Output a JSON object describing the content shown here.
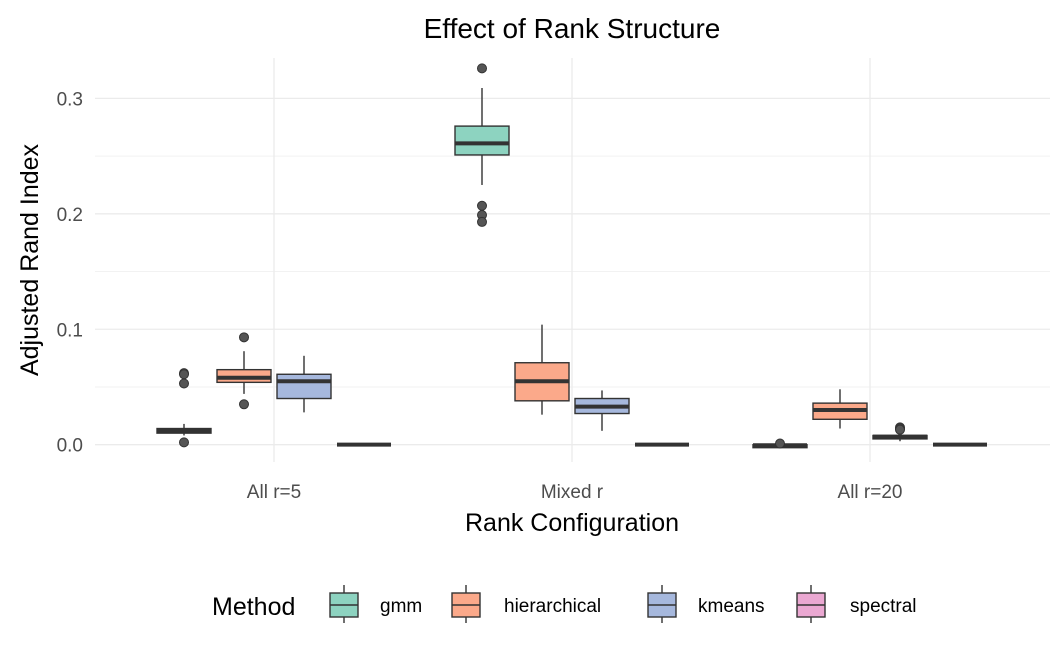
{
  "chart_data": {
    "type": "box",
    "title": "Effect of Rank Structure",
    "xlabel": "Rank Configuration",
    "ylabel": "Adjusted Rand Index",
    "ylim": [
      -0.015,
      0.335
    ],
    "yticks": [
      0.0,
      0.1,
      0.2,
      0.3
    ],
    "ytick_labels": [
      "0.0",
      "0.1",
      "0.2",
      "0.3"
    ],
    "categories": [
      "All r=5",
      "Mixed r",
      "All r=20"
    ],
    "legend": {
      "title": "Method",
      "position": "bottom"
    },
    "grid": true,
    "series": [
      {
        "name": "gmm",
        "color": "#8DD3C0",
        "boxes": [
          {
            "min": 0.008,
            "q1": 0.01,
            "median": 0.012,
            "q3": 0.014,
            "max": 0.018,
            "outliers": [
              0.062,
              0.061,
              0.053,
              0.002
            ]
          },
          {
            "min": 0.225,
            "q1": 0.251,
            "median": 0.261,
            "q3": 0.276,
            "max": 0.309,
            "outliers": [
              0.326,
              0.207,
              0.199,
              0.193
            ]
          },
          {
            "min": -0.001,
            "q1": -0.001,
            "median": -0.0005,
            "q3": 0.0,
            "max": 0.0,
            "outliers": [
              0.001
            ]
          }
        ]
      },
      {
        "name": "hierarchical",
        "color": "#FBA98A",
        "boxes": [
          {
            "min": 0.044,
            "q1": 0.054,
            "median": 0.058,
            "q3": 0.065,
            "max": 0.081,
            "outliers": [
              0.093,
              0.035
            ]
          },
          {
            "min": 0.026,
            "q1": 0.038,
            "median": 0.055,
            "q3": 0.071,
            "max": 0.104,
            "outliers": []
          },
          {
            "min": 0.014,
            "q1": 0.022,
            "median": 0.03,
            "q3": 0.036,
            "max": 0.048,
            "outliers": []
          }
        ]
      },
      {
        "name": "kmeans",
        "color": "#A6B8DD",
        "boxes": [
          {
            "min": 0.028,
            "q1": 0.04,
            "median": 0.055,
            "q3": 0.061,
            "max": 0.077,
            "outliers": []
          },
          {
            "min": 0.012,
            "q1": 0.027,
            "median": 0.033,
            "q3": 0.04,
            "max": 0.047,
            "outliers": []
          },
          {
            "min": 0.003,
            "q1": 0.005,
            "median": 0.007,
            "q3": 0.008,
            "max": 0.01,
            "outliers": [
              0.015,
              0.014,
              0.013
            ]
          }
        ]
      },
      {
        "name": "spectral",
        "color": "#EBA8D2",
        "boxes": [
          null,
          null,
          null
        ]
      }
    ],
    "flat_bars": [
      {
        "category": 0,
        "slot": 3,
        "value": 0.0
      },
      {
        "category": 1,
        "slot": 3,
        "value": 0.0
      },
      {
        "category": 2,
        "slot": 3,
        "value": 0.0
      }
    ]
  }
}
